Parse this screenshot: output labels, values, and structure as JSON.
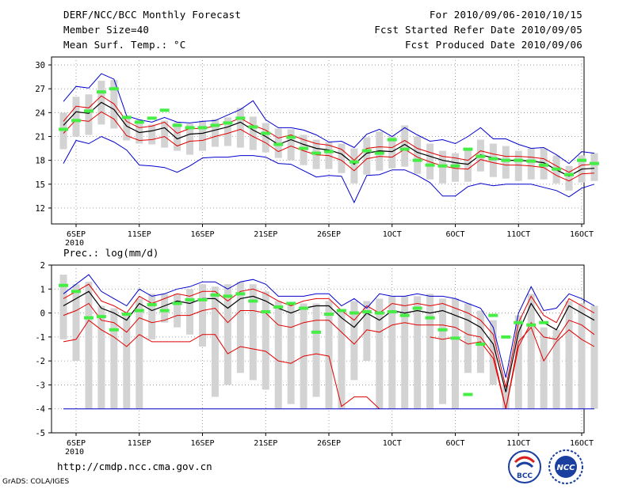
{
  "header": {
    "title": "DERF/NCC/BCC Monthly Forecast",
    "member_size": "Member Size=40",
    "variable": "Mean Surf. Temp.: °C",
    "period": "For 2010/09/06-2010/10/15",
    "started": "Fcst Started Refer Date 2010/09/05",
    "produced": "Fcst Produced Date 2010/09/06"
  },
  "footer": {
    "url": "http://cmdp.ncc.cma.gov.cn",
    "grads": "GrADS: COLA/IGES",
    "logo_bcc": "BCC",
    "logo_ncc": "NCC"
  },
  "colors": {
    "mean": "#000000",
    "spread": "#e00000",
    "extremes": "#0000cc",
    "box": "#d3d3d3",
    "obs": "#44ee44",
    "grid": "#888888"
  },
  "chart_data": [
    {
      "type": "box-ensemble",
      "title": "Mean Surf. Temp.: °C",
      "ylim": [
        10,
        31
      ],
      "yticks": [
        12,
        15,
        18,
        21,
        24,
        27,
        30
      ],
      "xticks": [
        {
          "day": 1,
          "label": "6SEP",
          "sub": "2010"
        },
        {
          "day": 6,
          "label": "11SEP"
        },
        {
          "day": 11,
          "label": "16SEP"
        },
        {
          "day": 16,
          "label": "21SEP"
        },
        {
          "day": 21,
          "label": "26SEP"
        },
        {
          "day": 26,
          "label": "1OCT"
        },
        {
          "day": 31,
          "label": "6OCT"
        },
        {
          "day": 36,
          "label": "11OCT"
        },
        {
          "day": 41,
          "label": "16OCT"
        }
      ],
      "days": 40,
      "series": [
        {
          "name": "ensemble-mean",
          "values": [
            22.4,
            24.1,
            23.9,
            25.3,
            24.4,
            22.3,
            21.5,
            21.7,
            22.1,
            20.7,
            21.3,
            21.4,
            21.8,
            22.2,
            22.8,
            21.8,
            21.0,
            20.0,
            20.6,
            20.0,
            19.5,
            19.3,
            18.8,
            17.5,
            18.9,
            19.2,
            19.1,
            20.0,
            19.0,
            18.5,
            18.0,
            17.7,
            17.5,
            18.7,
            18.3,
            18.0,
            18.0,
            17.9,
            17.7,
            16.8,
            16.0,
            16.9,
            17.0
          ]
        },
        {
          "name": "spread-upper",
          "values": [
            22.9,
            24.8,
            24.6,
            26.1,
            25.1,
            22.9,
            22.1,
            22.3,
            22.8,
            21.4,
            22.0,
            22.0,
            22.3,
            22.7,
            23.3,
            22.4,
            21.8,
            20.8,
            21.2,
            20.6,
            20.1,
            19.9,
            19.4,
            18.0,
            19.5,
            19.7,
            19.6,
            20.5,
            19.5,
            19.0,
            18.5,
            18.3,
            18.0,
            19.2,
            18.8,
            18.5,
            18.5,
            18.4,
            18.2,
            17.3,
            16.5,
            17.4,
            17.5
          ]
        },
        {
          "name": "spread-lower",
          "values": [
            21.4,
            23.1,
            22.9,
            24.1,
            23.2,
            21.1,
            20.5,
            20.6,
            21.0,
            19.8,
            20.4,
            20.5,
            21.0,
            21.4,
            21.9,
            21.0,
            20.2,
            19.1,
            19.8,
            19.2,
            18.7,
            18.6,
            18.0,
            16.7,
            18.2,
            18.5,
            18.4,
            19.4,
            18.4,
            17.8,
            17.3,
            17.0,
            16.9,
            18.1,
            17.7,
            17.4,
            17.4,
            17.3,
            17.1,
            16.1,
            15.4,
            16.3,
            16.4
          ]
        },
        {
          "name": "max",
          "values": [
            25.4,
            27.3,
            27.1,
            28.9,
            28.2,
            23.6,
            23.1,
            22.8,
            23.4,
            22.8,
            22.7,
            22.9,
            23.0,
            23.7,
            24.4,
            25.5,
            23.1,
            22.1,
            22.1,
            21.8,
            21.2,
            20.3,
            20.4,
            19.6,
            21.3,
            21.9,
            21.0,
            22.1,
            21.2,
            20.4,
            20.6,
            20.1,
            21.0,
            22.1,
            20.7,
            20.7,
            20.0,
            19.5,
            19.6,
            18.7,
            17.6,
            19.1,
            18.9
          ]
        },
        {
          "name": "min",
          "values": [
            17.6,
            20.5,
            20.1,
            21.0,
            20.3,
            19.3,
            17.4,
            17.3,
            17.1,
            16.5,
            17.3,
            18.3,
            18.4,
            18.4,
            18.6,
            18.6,
            18.4,
            17.6,
            17.5,
            16.7,
            15.9,
            16.1,
            16.0,
            12.7,
            16.1,
            16.2,
            16.8,
            16.8,
            16.1,
            15.2,
            13.5,
            13.5,
            14.7,
            15.1,
            14.8,
            15.0,
            15.0,
            15.0,
            14.6,
            14.2,
            13.4,
            14.5,
            15.0
          ]
        }
      ],
      "boxes": [
        [
          19.4,
          24.0
        ],
        [
          21.0,
          26.0
        ],
        [
          21.2,
          26.3
        ],
        [
          22.5,
          28.0
        ],
        [
          22.0,
          28.1
        ],
        [
          20.5,
          23.6
        ],
        [
          20.1,
          23.1
        ],
        [
          20.0,
          22.5
        ],
        [
          19.6,
          23.0
        ],
        [
          19.2,
          22.8
        ],
        [
          18.7,
          22.6
        ],
        [
          19.2,
          23.0
        ],
        [
          19.7,
          23.2
        ],
        [
          19.8,
          23.4
        ],
        [
          19.6,
          24.6
        ],
        [
          19.3,
          23.5
        ],
        [
          19.0,
          22.7
        ],
        [
          18.3,
          22.0
        ],
        [
          18.0,
          21.9
        ],
        [
          17.4,
          21.2
        ],
        [
          16.9,
          20.6
        ],
        [
          16.9,
          20.3
        ],
        [
          16.4,
          20.1
        ],
        [
          15.1,
          19.5
        ],
        [
          16.2,
          20.9
        ],
        [
          16.7,
          21.6
        ],
        [
          17.0,
          21.1
        ],
        [
          17.2,
          22.4
        ],
        [
          16.3,
          21.0
        ],
        [
          15.6,
          20.1
        ],
        [
          15.1,
          19.2
        ],
        [
          15.3,
          18.9
        ],
        [
          15.3,
          19.5
        ],
        [
          16.6,
          20.6
        ],
        [
          15.9,
          20.1
        ],
        [
          15.7,
          19.8
        ],
        [
          15.4,
          19.2
        ],
        [
          15.6,
          19.5
        ],
        [
          15.6,
          19.5
        ],
        [
          15.1,
          18.6
        ],
        [
          14.2,
          17.3
        ],
        [
          15.2,
          18.6
        ],
        [
          15.4,
          18.9
        ]
      ],
      "observed": [
        21.9,
        23.0,
        24.2,
        26.6,
        27.0,
        23.4,
        22.8,
        23.3,
        24.3,
        22.4,
        22.1,
        22.1,
        22.4,
        22.7,
        23.3,
        22.2,
        21.4,
        20.0,
        20.9,
        19.5,
        18.9,
        19.1,
        null,
        17.8,
        19.2,
        18.9,
        20.6,
        19.4,
        18.0,
        17.4,
        17.3,
        17.3,
        19.4,
        18.5,
        18.2,
        18.0,
        18.0,
        17.9,
        17.4,
        16.9,
        16.2,
        18.0,
        17.6
      ]
    },
    {
      "type": "box-ensemble",
      "title": "Prec.: log(mm/d)",
      "ylim": [
        -5,
        2
      ],
      "yticks": [
        -5,
        -4,
        -3,
        -2,
        -1,
        0,
        1,
        2
      ],
      "xticks": [
        {
          "day": 1,
          "label": "6SEP",
          "sub": "2010"
        },
        {
          "day": 6,
          "label": "11SEP"
        },
        {
          "day": 11,
          "label": "16SEP"
        },
        {
          "day": 16,
          "label": "21SEP"
        },
        {
          "day": 21,
          "label": "26SEP"
        },
        {
          "day": 26,
          "label": "1OCT"
        },
        {
          "day": 31,
          "label": "6OCT"
        },
        {
          "day": 36,
          "label": "11OCT"
        },
        {
          "day": 41,
          "label": "16OCT"
        }
      ],
      "days": 40,
      "series": [
        {
          "name": "ensemble-mean",
          "values": [
            0.3,
            0.6,
            0.9,
            0.2,
            0.0,
            -0.3,
            0.4,
            0.1,
            0.3,
            0.5,
            0.4,
            0.6,
            0.6,
            0.2,
            0.6,
            0.7,
            0.5,
            0.2,
            0.0,
            0.2,
            0.3,
            0.3,
            -0.2,
            -0.6,
            0.0,
            -0.3,
            0.1,
            0.0,
            0.1,
            0.0,
            0.1,
            -0.1,
            -0.3,
            -0.6,
            -1.3,
            -3.3,
            -0.8,
            0.4,
            -0.4,
            -0.7,
            0.3,
            0.0,
            -0.3
          ]
        },
        {
          "name": "spread-upper",
          "values": [
            0.6,
            0.9,
            1.2,
            0.5,
            0.3,
            0.0,
            0.7,
            0.4,
            0.6,
            0.8,
            0.7,
            0.9,
            0.9,
            0.5,
            0.9,
            1.0,
            0.8,
            0.5,
            0.3,
            0.5,
            0.6,
            0.6,
            0.1,
            -0.3,
            0.3,
            0.0,
            0.4,
            0.3,
            0.4,
            0.3,
            0.4,
            0.2,
            0.0,
            -0.3,
            -0.9,
            -3.1,
            -0.4,
            0.7,
            -0.1,
            -0.4,
            0.6,
            0.3,
            0.0
          ]
        },
        {
          "name": "spread-lower",
          "values": [
            -0.1,
            0.1,
            0.4,
            -0.3,
            -0.4,
            -0.8,
            -0.2,
            -0.4,
            -0.3,
            -0.1,
            -0.1,
            0.1,
            0.2,
            -0.4,
            0.1,
            0.1,
            0.0,
            -0.5,
            -0.6,
            -0.4,
            -0.3,
            -0.3,
            -0.8,
            -1.3,
            -0.7,
            -0.8,
            -0.5,
            -0.4,
            -0.5,
            -0.5,
            -0.5,
            -0.6,
            -0.9,
            -1.0,
            -1.7,
            -4.0,
            -1.4,
            -0.4,
            -1.0,
            -1.1,
            -0.3,
            -0.5,
            -0.9
          ]
        },
        {
          "name": "p10",
          "values": [
            -1.2,
            -1.1,
            -0.3,
            -0.7,
            -1.0,
            -1.4,
            -0.9,
            -1.2,
            -1.2,
            -1.2,
            -1.2,
            -0.9,
            -0.9,
            -1.7,
            -1.4,
            -1.5,
            -1.6,
            -2.0,
            -2.1,
            -1.8,
            -1.7,
            -1.8,
            -3.9,
            -3.5,
            -3.5,
            -4.0,
            null,
            null,
            null,
            null,
            null,
            null,
            null,
            null,
            null,
            null,
            null,
            null,
            null,
            null,
            null,
            null,
            null
          ]
        },
        {
          "name": "p10-tail",
          "values": [
            null,
            null,
            null,
            null,
            null,
            null,
            null,
            null,
            null,
            null,
            null,
            null,
            null,
            null,
            null,
            null,
            null,
            null,
            null,
            null,
            null,
            null,
            null,
            null,
            null,
            null,
            null,
            null,
            null,
            -1.0,
            -1.1,
            -1.0,
            -1.3,
            -1.2,
            -1.9,
            -4.0,
            -1.2,
            -0.6,
            -2.0,
            -1.2,
            -0.7,
            -1.1,
            -1.4
          ]
        },
        {
          "name": "max",
          "values": [
            0.8,
            1.2,
            1.6,
            0.9,
            0.6,
            0.3,
            1.0,
            0.7,
            0.8,
            1.0,
            1.1,
            1.3,
            1.3,
            1.0,
            1.3,
            1.4,
            1.2,
            0.7,
            0.7,
            0.7,
            0.8,
            0.8,
            0.3,
            0.6,
            0.2,
            0.8,
            0.7,
            0.7,
            0.8,
            0.7,
            0.7,
            0.6,
            0.4,
            0.2,
            -0.6,
            -2.7,
            0.0,
            1.1,
            0.1,
            0.2,
            0.8,
            0.6,
            0.3
          ]
        },
        {
          "name": "floor",
          "values": [
            -4,
            -4,
            -4,
            -4,
            -4,
            -4,
            -4,
            -4,
            -4,
            -4,
            -4,
            -4,
            -4,
            -4,
            -4,
            -4,
            -4,
            -4,
            -4,
            -4,
            -4,
            -4,
            -4,
            -4,
            -4,
            -4,
            -4,
            -4,
            -4,
            -4,
            -4,
            -4,
            -4,
            -4,
            -4,
            -4,
            -4,
            -4,
            -4,
            -4,
            -4,
            -4,
            -4
          ]
        }
      ],
      "boxes": [
        [
          -1.1,
          1.6
        ],
        [
          -2.0,
          1.2
        ],
        [
          -4.0,
          1.3
        ],
        [
          -4.0,
          0.3
        ],
        [
          -4.0,
          0.2
        ],
        [
          -4.0,
          -0.1
        ],
        [
          -4.0,
          0.6
        ],
        [
          -1.1,
          0.8
        ],
        [
          -0.4,
          0.8
        ],
        [
          -0.6,
          0.8
        ],
        [
          -0.9,
          1.0
        ],
        [
          -1.4,
          1.2
        ],
        [
          -3.5,
          1.1
        ],
        [
          -3.0,
          1.2
        ],
        [
          -2.5,
          1.3
        ],
        [
          -2.8,
          1.2
        ],
        [
          -3.2,
          0.9
        ],
        [
          -4.0,
          0.5
        ],
        [
          -3.8,
          0.4
        ],
        [
          -4.0,
          0.4
        ],
        [
          -3.5,
          0.4
        ],
        [
          -4.0,
          0.5
        ],
        [
          -4.0,
          0.1
        ],
        [
          -2.8,
          0.5
        ],
        [
          -2.0,
          0.5
        ],
        [
          -4.0,
          0.6
        ],
        [
          -4.0,
          0.7
        ],
        [
          -4.0,
          0.7
        ],
        [
          -4.0,
          0.7
        ],
        [
          -4.0,
          0.8
        ],
        [
          -3.8,
          0.6
        ],
        [
          -4.0,
          0.6
        ],
        [
          -2.5,
          0.4
        ],
        [
          -2.5,
          0.1
        ],
        [
          -3.0,
          -0.3
        ],
        [
          -4.0,
          -3.0
        ],
        [
          -4.0,
          -0.1
        ],
        [
          -4.0,
          0.8
        ],
        [
          -4.0,
          -0.6
        ],
        [
          -4.0,
          -0.7
        ],
        [
          -4.0,
          0.5
        ],
        [
          -4.0,
          0.4
        ],
        [
          -4.0,
          0.3
        ]
      ],
      "observed": [
        1.15,
        0.9,
        -0.2,
        -0.15,
        -0.7,
        -0.05,
        0.1,
        0.35,
        0.1,
        0.4,
        0.55,
        0.55,
        0.75,
        0.7,
        0.8,
        0.5,
        0.05,
        0.25,
        0.4,
        0.2,
        -0.8,
        -0.05,
        0.1,
        0.0,
        0.05,
        0.0,
        0.05,
        -0.1,
        0.2,
        -0.2,
        -0.7,
        -1.05,
        -3.4,
        -1.3,
        -0.1,
        -1.0,
        -0.4,
        -0.5,
        -0.4,
        null,
        null,
        null,
        null
      ]
    }
  ]
}
